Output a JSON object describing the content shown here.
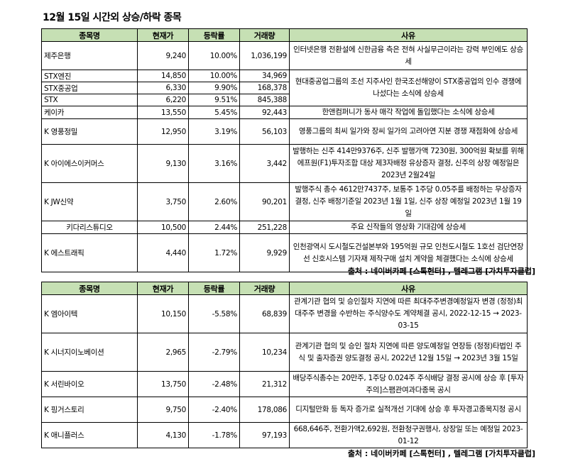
{
  "title": "12월 15일  시간외 상승/하락 종목",
  "headers": [
    "종목명",
    "현재가",
    "등락률",
    "거래량",
    "사유"
  ],
  "source": "출처 : 네이버카페 [스톡헌터] , 텔레그램 [가치투자클럽]",
  "rising": [
    {
      "name": "제주은행",
      "price": "9,240",
      "change": "10.00%",
      "volume": "1,036,199",
      "reason": "인터넷은행 전환설에 신한금융 측은 전혀 사실무근이라는 강력 부인에도 상승세"
    },
    {
      "name": "STX엔진",
      "price": "14,850",
      "change": "10.00%",
      "volume": "34,969",
      "reason": "현대중공업그룹의 조선 지주사인 한국조선해양이 STX중공업의 인수 경쟁에 나섰다는 소식에 상승세"
    },
    {
      "name": "STX중공업",
      "price": "6,330",
      "change": "9.90%",
      "volume": "168,378"
    },
    {
      "name": "STX",
      "price": "6,220",
      "change": "9.51%",
      "volume": "845,388"
    },
    {
      "name": "케이카",
      "price": "13,550",
      "change": "5.45%",
      "volume": "92,443",
      "reason": "한앤컴퍼니가 동사 매각 작업에 돌입했다는 소식에 상승세"
    },
    {
      "name": "K 영풍정밀",
      "price": "12,950",
      "change": "3.19%",
      "volume": "56,103",
      "reason": "영풍그룹의 최씨 일가와 장씨 일가의 고려아연 지분 경쟁 재점화에 상승세"
    },
    {
      "name": "K 아이에스이커머스",
      "price": "9,130",
      "change": "3.16%",
      "volume": "3,442",
      "reason": "발행하는 신주 414만9376주, 신주 발행가액 7230원, 300억원 확보를 위해 에프원(F1)투자조합 대상 제3자배정 유상증자 결정, 신주의 상장 예정일은 2023년 2월24일"
    },
    {
      "name": "K JW신약",
      "price": "3,750",
      "change": "2.60%",
      "volume": "90,201",
      "reason": "발행주식 총수 4612만7437주, 보통주 1주당 0.05주를 배정하는 무상증자 결정, 신주 배정기준일 2023년 1월 1일, 신주 상장 예정일 2023년 1월 19일"
    },
    {
      "name": "키다리스튜디오",
      "price": "10,500",
      "change": "2.44%",
      "volume": "251,228",
      "reason": "주요 신작들의 영상화 기대감에 상승세"
    },
    {
      "name": "K 에스트래픽",
      "price": "4,440",
      "change": "1.72%",
      "volume": "9,929",
      "reason": "인천광역시 도시철도건설본부와 195억원 규모 인천도시철도 1호선 검단연장선 신호시스템 기자재 제작구매 설치 계약을 체결했다는 소식에 상승세"
    }
  ],
  "falling": [
    {
      "name": "K 엠아이텍",
      "price": "10,150",
      "change": "-5.58%",
      "volume": "68,839",
      "reason": "관계기관 협의 및 승인절차 지연에 따른 최대주주변경예정일자 변경 (정정)최대주주 변경을 수반하는 주식양수도 계약체결 공시, 2022-12-15 → 2023-03-15"
    },
    {
      "name": "K 시너지이노베이션",
      "price": "2,965",
      "change": "-2.79%",
      "volume": "10,234",
      "reason": "관계기관 협의 및 승인 절차 지연에 따른 양도예정일 연장등 (정정)타법인 주식 및 출자증권 양도결정 공시, 2022년 12월 15일 → 2023년 3월 15일"
    },
    {
      "name": "K 서린바이오",
      "price": "13,750",
      "change": "-2.48%",
      "volume": "21,312",
      "reason": "배당주식총수는 20만주, 1주당 0.024주 주식배당 결정 공시에 상승 후 [투자주의]스팸관여과다종목 공시"
    },
    {
      "name": "K 핑거스토리",
      "price": "9,750",
      "change": "-2.40%",
      "volume": "178,086",
      "reason": "디지털만화 등 독자 증가로 실적개선 기대에 상승 후 투자경고종목지정 공시"
    },
    {
      "name": "K 애니플러스",
      "price": "4,130",
      "change": "-1.78%",
      "volume": "97,193",
      "reason": "668,646주, 전환가액2,692원, 전환청구권행사, 상장일 또는 예정일 2023-01-12"
    }
  ]
}
